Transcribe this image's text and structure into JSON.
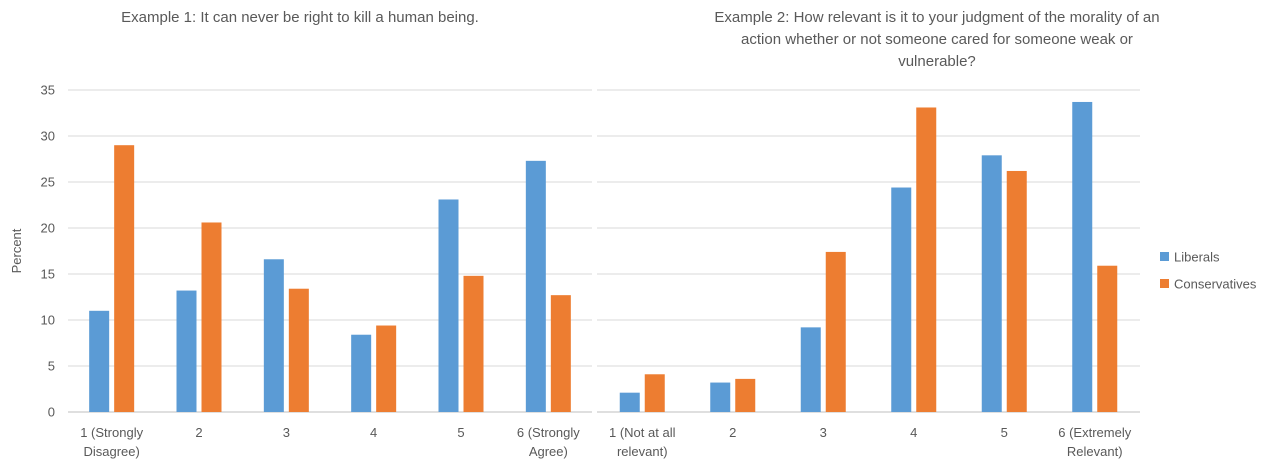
{
  "colors": {
    "liberals": "#5B9BD5",
    "conservatives": "#ED7D31",
    "grid": "#D9D9D9",
    "axis": "#BFBFBF",
    "text": "#595959"
  },
  "legend": {
    "placement": "right",
    "items": [
      "Liberals",
      "Conservatives"
    ]
  },
  "chart_data": [
    {
      "type": "bar",
      "title": "Example 1: It can never be right to kill a human being.",
      "ylabel": "Percent",
      "ylim": [
        0,
        35
      ],
      "yticks": [
        0,
        5,
        10,
        15,
        20,
        25,
        30,
        35
      ],
      "grid": true,
      "categories": [
        [
          "1 (Strongly",
          "Disagree)"
        ],
        [
          "2"
        ],
        [
          "3"
        ],
        [
          "4"
        ],
        [
          "5"
        ],
        [
          "6 (Strongly",
          "Agree)"
        ]
      ],
      "series": [
        {
          "name": "Liberals",
          "color": "#5B9BD5",
          "values": [
            11.0,
            13.2,
            16.6,
            8.4,
            23.1,
            27.3
          ]
        },
        {
          "name": "Conservatives",
          "color": "#ED7D31",
          "values": [
            29.0,
            20.6,
            13.4,
            9.4,
            14.8,
            12.7
          ]
        }
      ]
    },
    {
      "type": "bar",
      "title": [
        "Example 2: How relevant is it to your judgment of the morality of an",
        "action whether or not someone cared for someone weak or",
        "vulnerable?"
      ],
      "ylim": [
        0,
        35
      ],
      "grid": true,
      "categories": [
        [
          "1 (Not at all",
          "relevant)"
        ],
        [
          "2"
        ],
        [
          "3"
        ],
        [
          "4"
        ],
        [
          "5"
        ],
        [
          "6 (Extremely",
          "Relevant)"
        ]
      ],
      "series": [
        {
          "name": "Liberals",
          "color": "#5B9BD5",
          "values": [
            2.1,
            3.2,
            9.2,
            24.4,
            27.9,
            33.7
          ]
        },
        {
          "name": "Conservatives",
          "color": "#ED7D31",
          "values": [
            4.1,
            3.6,
            17.4,
            33.1,
            26.2,
            15.9
          ]
        }
      ]
    }
  ]
}
